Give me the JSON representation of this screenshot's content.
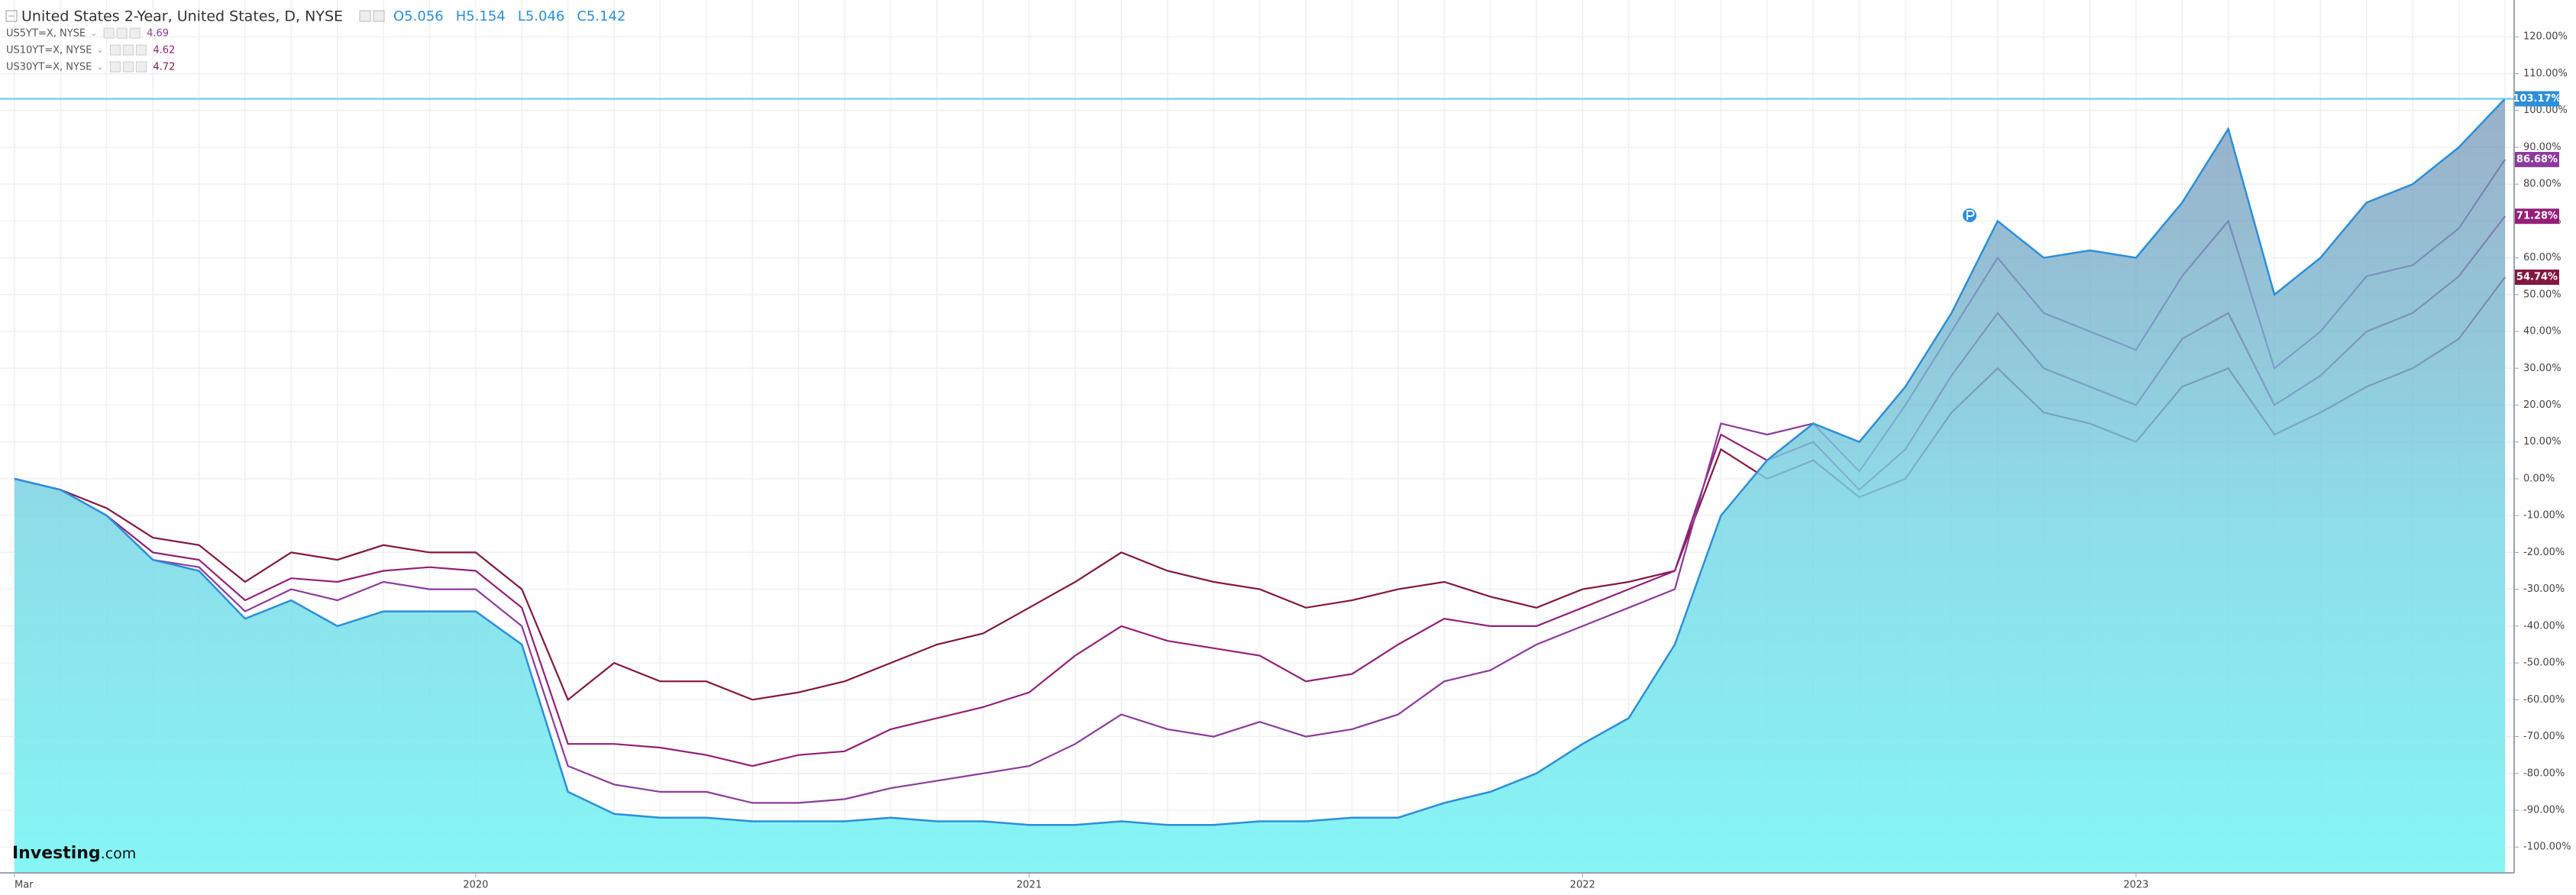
{
  "chart_data": {
    "type": "line",
    "categories": [
      "Mar",
      null,
      null,
      null,
      null,
      null,
      null,
      null,
      null,
      null,
      "2020",
      null,
      null,
      null,
      null,
      null,
      null,
      null,
      null,
      null,
      null,
      null,
      "2021",
      null,
      null,
      null,
      null,
      null,
      null,
      null,
      null,
      null,
      null,
      null,
      "2022",
      null,
      null,
      null,
      null,
      null,
      null,
      null,
      null,
      null,
      null,
      null,
      "2023",
      null,
      null,
      null,
      null,
      null,
      null,
      null,
      null
    ],
    "ohlc": [
      {
        "label": "O",
        "value": 5.056
      },
      {
        "label": "H",
        "value": 5.154
      },
      {
        "label": "L",
        "value": 5.046
      },
      {
        "label": "C",
        "value": 5.142
      }
    ],
    "series": [
      {
        "name": "United States 2-Year, United States, D, NYSE",
        "color": "#2b8fd9",
        "area": true,
        "values": [
          0,
          -3,
          -10,
          -22,
          -25,
          -38,
          -33,
          -40,
          -36,
          -36,
          -36,
          -45,
          -85,
          -91,
          -92,
          -92,
          -93,
          -93,
          -93,
          -92,
          -93,
          -93,
          -94,
          -94,
          -93,
          -94,
          -94,
          -93,
          -93,
          -92,
          -92,
          -88,
          -85,
          -80,
          -72,
          -65,
          -45,
          -10,
          5,
          15,
          10,
          25,
          45,
          70,
          60,
          62,
          60,
          75,
          95,
          50,
          60,
          75,
          80,
          90,
          103.17
        ],
        "value_labels": [
          null,
          null,
          null,
          null,
          null,
          null,
          null,
          null,
          null,
          null,
          null,
          null,
          null,
          null,
          null,
          null,
          null,
          null,
          null,
          null,
          null,
          null,
          null,
          null,
          null,
          null,
          null,
          null,
          null,
          null,
          null,
          null,
          null,
          null,
          null,
          null,
          null,
          null,
          null,
          null,
          null,
          null,
          null,
          null,
          null,
          null,
          null,
          null,
          null,
          null,
          null,
          null,
          null,
          null,
          "103.17%"
        ]
      },
      {
        "name": "US5YT=X, NYSE",
        "color": "#8d3a9c",
        "last_quote": 4.69,
        "values": [
          0,
          -3,
          -10,
          -22,
          -24,
          -36,
          -30,
          -33,
          -28,
          -30,
          -30,
          -40,
          -78,
          -83,
          -85,
          -85,
          -88,
          -88,
          -87,
          -84,
          -82,
          -80,
          -78,
          -72,
          -64,
          -68,
          -70,
          -66,
          -70,
          -68,
          -64,
          -55,
          -52,
          -45,
          -40,
          -35,
          -30,
          15,
          12,
          15,
          2,
          20,
          40,
          60,
          45,
          40,
          35,
          55,
          70,
          30,
          40,
          55,
          58,
          68,
          86.68
        ],
        "value_labels": [
          null,
          null,
          null,
          null,
          null,
          null,
          null,
          null,
          null,
          null,
          null,
          null,
          null,
          null,
          null,
          null,
          null,
          null,
          null,
          null,
          null,
          null,
          null,
          null,
          null,
          null,
          null,
          null,
          null,
          null,
          null,
          null,
          null,
          null,
          null,
          null,
          null,
          null,
          null,
          null,
          null,
          null,
          null,
          null,
          null,
          null,
          null,
          null,
          null,
          null,
          null,
          null,
          null,
          null,
          "86.68%"
        ]
      },
      {
        "name": "US10YT=X, NYSE",
        "color": "#941f78",
        "last_quote": 4.62,
        "values": [
          0,
          -3,
          -10,
          -20,
          -22,
          -33,
          -27,
          -28,
          -25,
          -24,
          -25,
          -35,
          -72,
          -72,
          -73,
          -75,
          -78,
          -75,
          -74,
          -68,
          -65,
          -62,
          -58,
          -48,
          -40,
          -44,
          -46,
          -48,
          -55,
          -53,
          -45,
          -38,
          -40,
          -40,
          -35,
          -30,
          -25,
          12,
          5,
          10,
          -3,
          8,
          28,
          45,
          30,
          25,
          20,
          38,
          45,
          20,
          28,
          40,
          45,
          55,
          71.28
        ],
        "value_labels": [
          null,
          null,
          null,
          null,
          null,
          null,
          null,
          null,
          null,
          null,
          null,
          null,
          null,
          null,
          null,
          null,
          null,
          null,
          null,
          null,
          null,
          null,
          null,
          null,
          null,
          null,
          null,
          null,
          null,
          null,
          null,
          null,
          null,
          null,
          null,
          null,
          null,
          null,
          null,
          null,
          null,
          null,
          null,
          null,
          null,
          null,
          null,
          null,
          null,
          null,
          null,
          null,
          null,
          null,
          "71.28%"
        ]
      },
      {
        "name": "US30YT=X, NYSE",
        "color": "#84173f",
        "last_quote": 4.72,
        "values": [
          0,
          -3,
          -8,
          -16,
          -18,
          -28,
          -20,
          -22,
          -18,
          -20,
          -20,
          -30,
          -60,
          -50,
          -55,
          -55,
          -60,
          -58,
          -55,
          -50,
          -45,
          -42,
          -35,
          -28,
          -20,
          -25,
          -28,
          -30,
          -35,
          -33,
          -30,
          -28,
          -32,
          -35,
          -30,
          -28,
          -25,
          8,
          0,
          5,
          -5,
          0,
          18,
          30,
          18,
          15,
          10,
          25,
          30,
          12,
          18,
          25,
          30,
          38,
          54.74
        ],
        "value_labels": [
          null,
          null,
          null,
          null,
          null,
          null,
          null,
          null,
          null,
          null,
          null,
          null,
          null,
          null,
          null,
          null,
          null,
          null,
          null,
          null,
          null,
          null,
          null,
          null,
          null,
          null,
          null,
          null,
          null,
          null,
          null,
          null,
          null,
          null,
          null,
          null,
          null,
          null,
          null,
          null,
          null,
          null,
          null,
          null,
          null,
          null,
          null,
          null,
          null,
          null,
          null,
          null,
          null,
          null,
          "54.74%"
        ]
      }
    ],
    "ylim": [
      -107,
      130
    ],
    "yticks": [
      {
        "value": -100,
        "label": "-100.00%"
      },
      {
        "value": -90,
        "label": "-90.00%"
      },
      {
        "value": -80,
        "label": "-80.00%"
      },
      {
        "value": -70,
        "label": "-70.00%"
      },
      {
        "value": -60,
        "label": "-60.00%"
      },
      {
        "value": -50,
        "label": "-50.00%"
      },
      {
        "value": -40,
        "label": "-40.00%"
      },
      {
        "value": -30,
        "label": "-30.00%"
      },
      {
        "value": -20,
        "label": "-20.00%"
      },
      {
        "value": -10,
        "label": "-10.00%"
      },
      {
        "value": 0,
        "label": "0.00%"
      },
      {
        "value": 10,
        "label": "10.00%"
      },
      {
        "value": 20,
        "label": "20.00%"
      },
      {
        "value": 30,
        "label": "30.00%"
      },
      {
        "value": 40,
        "label": "40.00%"
      },
      {
        "value": 50,
        "label": "50.00%"
      },
      {
        "value": 60,
        "label": "60.00%"
      },
      {
        "value": 70,
        "label": "70.00%"
      },
      {
        "value": 80,
        "label": "80.00%"
      },
      {
        "value": 90,
        "label": "90.00%"
      },
      {
        "value": 100,
        "label": "100.00%"
      },
      {
        "value": 110,
        "label": "110.00%"
      },
      {
        "value": 120,
        "label": "120.00%"
      }
    ],
    "grid": true,
    "logo": [
      "Investing",
      ".com"
    ]
  }
}
